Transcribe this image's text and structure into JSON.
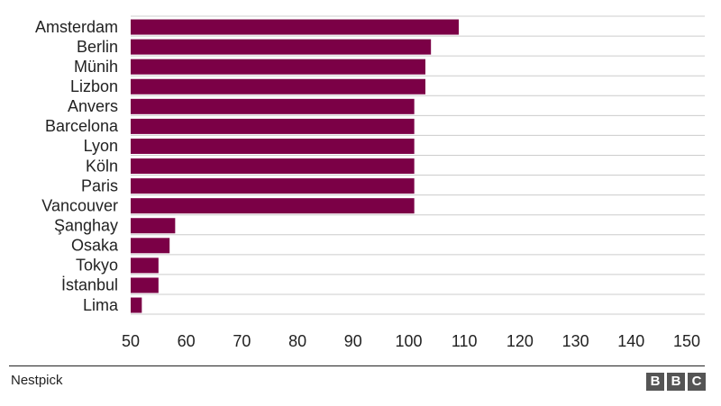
{
  "chart_data": {
    "type": "bar",
    "orientation": "horizontal",
    "categories": [
      "Amsterdam",
      "Berlin",
      "Münih",
      "Lizbon",
      "Anvers",
      "Barcelona",
      "Lyon",
      "Köln",
      "Paris",
      "Vancouver",
      "Şanghay",
      "Osaka",
      "Tokyo",
      "İstanbul",
      "Lima"
    ],
    "values": [
      109,
      104,
      103,
      103,
      101,
      101,
      101,
      101,
      101,
      101,
      58,
      57,
      55,
      55,
      52
    ],
    "xlim": [
      50,
      150
    ],
    "xticks": [
      "50",
      "60",
      "70",
      "80",
      "90",
      "100",
      "110",
      "120",
      "130",
      "140",
      "150"
    ],
    "bar_color": "#7b0046",
    "grid": true
  },
  "footer": {
    "source": "Nestpick",
    "logo_letters": [
      "B",
      "B",
      "C"
    ]
  }
}
